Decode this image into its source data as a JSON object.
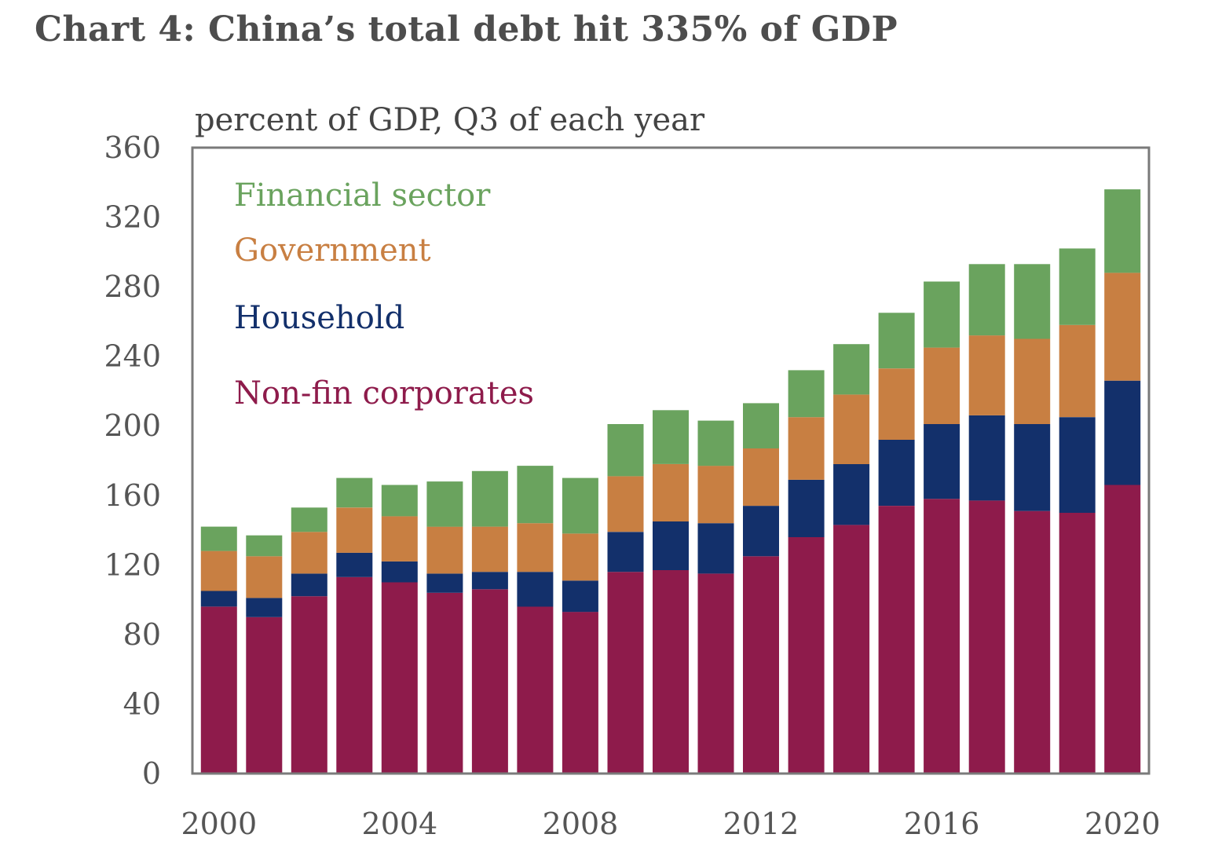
{
  "chart_data": {
    "type": "bar",
    "stacked": true,
    "title": "Chart 4:  China’s total debt hit 335% of GDP",
    "subtitle": "percent of GDP, Q3  of each year",
    "xlabel": "",
    "ylabel": "percent of GDP",
    "ylim": [
      0,
      360
    ],
    "yticks": [
      0,
      40,
      80,
      120,
      160,
      200,
      240,
      280,
      320,
      360
    ],
    "xtick_labels": [
      "2000",
      "2004",
      "2008",
      "2012",
      "2016",
      "2020"
    ],
    "grid": false,
    "legend_position": "top-left",
    "categories": [
      "2000",
      "2001",
      "2002",
      "2003",
      "2004",
      "2005",
      "2006",
      "2007",
      "2008",
      "2009",
      "2010",
      "2011",
      "2012",
      "2013",
      "2014",
      "2015",
      "2016",
      "2017",
      "2018",
      "2019",
      "2020"
    ],
    "series": [
      {
        "name": "Non-fin corporates",
        "color": "#8e1b4b",
        "values": [
          96,
          90,
          102,
          113,
          110,
          104,
          106,
          96,
          93,
          116,
          117,
          115,
          125,
          136,
          143,
          154,
          158,
          157,
          151,
          150,
          166
        ]
      },
      {
        "name": "Household",
        "color": "#13306b",
        "values": [
          9,
          11,
          13,
          14,
          12,
          11,
          10,
          20,
          18,
          23,
          28,
          29,
          29,
          33,
          35,
          38,
          43,
          49,
          50,
          55,
          60
        ]
      },
      {
        "name": "Government",
        "color": "#c87f42",
        "values": [
          23,
          24,
          24,
          26,
          26,
          27,
          26,
          28,
          27,
          32,
          33,
          33,
          33,
          36,
          40,
          41,
          44,
          46,
          49,
          53,
          62
        ]
      },
      {
        "name": "Financial sector",
        "color": "#6aa35e",
        "values": [
          14,
          12,
          14,
          17,
          18,
          26,
          32,
          33,
          32,
          30,
          31,
          26,
          26,
          27,
          29,
          32,
          38,
          41,
          43,
          44,
          48
        ]
      }
    ],
    "legend": [
      {
        "label": "Financial sector",
        "color": "#6aa35e"
      },
      {
        "label": "Government",
        "color": "#c87f42"
      },
      {
        "label": "Household",
        "color": "#13306b"
      },
      {
        "label": "Non-fin corporates",
        "color": "#8e1b4b"
      }
    ]
  }
}
